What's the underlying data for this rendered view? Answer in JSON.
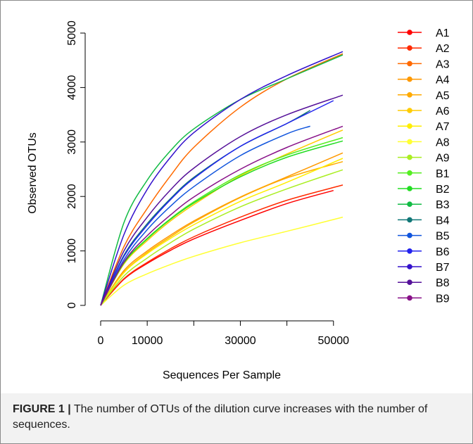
{
  "chart_data": {
    "type": "line",
    "xlabel": "Sequences Per Sample",
    "ylabel": "Observed OTUs",
    "xlim": [
      0,
      52000
    ],
    "ylim": [
      0,
      5000
    ],
    "xticks": [
      0,
      10000,
      30000,
      50000
    ],
    "xtick_labels": [
      "0",
      "10000",
      "30000",
      "50000"
    ],
    "yticks": [
      0,
      1000,
      2000,
      3000,
      4000,
      5000
    ],
    "ytick_labels": [
      "0",
      "1000",
      "2000",
      "3000",
      "4000",
      "5000"
    ],
    "legend_position": "right",
    "grid": false,
    "series": [
      {
        "name": "A1",
        "color": "#ff0000",
        "x": [
          0,
          5000,
          10000,
          15000,
          20000,
          30000,
          40000,
          50000
        ],
        "y": [
          0,
          480,
          770,
          1010,
          1220,
          1560,
          1870,
          2110
        ]
      },
      {
        "name": "A2",
        "color": "#ff2a00",
        "x": [
          0,
          5000,
          10000,
          15000,
          20000,
          30000,
          40000,
          52000
        ],
        "y": [
          0,
          490,
          790,
          1040,
          1260,
          1620,
          1930,
          2210
        ]
      },
      {
        "name": "A3",
        "color": "#ff6a00",
        "x": [
          0,
          5000,
          10000,
          15000,
          20000,
          30000,
          40000,
          52000
        ],
        "y": [
          0,
          1080,
          1780,
          2380,
          2900,
          3640,
          4160,
          4620
        ]
      },
      {
        "name": "A4",
        "color": "#ff9900",
        "x": [
          0,
          5000,
          10000,
          15000,
          20000,
          30000,
          40000,
          52000
        ],
        "y": [
          0,
          640,
          1000,
          1290,
          1550,
          1990,
          2360,
          2800
        ]
      },
      {
        "name": "A5",
        "color": "#ffaa00",
        "x": [
          0,
          5000,
          10000,
          15000,
          20000,
          30000,
          40000,
          52000
        ],
        "y": [
          0,
          610,
          970,
          1260,
          1530,
          1980,
          2340,
          2640
        ]
      },
      {
        "name": "A6",
        "color": "#ffcc00",
        "x": [
          0,
          5000,
          10000,
          15000,
          20000,
          30000,
          40000,
          52000
        ],
        "y": [
          0,
          760,
          1190,
          1550,
          1850,
          2380,
          2780,
          3220
        ]
      },
      {
        "name": "A7",
        "color": "#ffee00",
        "x": [
          0,
          5000,
          10000,
          15000,
          20000,
          30000,
          40000,
          52000
        ],
        "y": [
          0,
          600,
          950,
          1230,
          1480,
          1910,
          2260,
          2700
        ]
      },
      {
        "name": "A8",
        "color": "#ffff33",
        "x": [
          0,
          5000,
          10000,
          15000,
          20000,
          30000,
          40000,
          52000
        ],
        "y": [
          0,
          370,
          580,
          750,
          900,
          1150,
          1360,
          1620
        ]
      },
      {
        "name": "A9",
        "color": "#aaee22",
        "x": [
          0,
          5000,
          10000,
          15000,
          20000,
          30000,
          40000,
          52000
        ],
        "y": [
          0,
          540,
          870,
          1150,
          1400,
          1810,
          2140,
          2490
        ]
      },
      {
        "name": "B1",
        "color": "#55ee22",
        "x": [
          0,
          5000,
          10000,
          15000,
          20000,
          30000,
          40000,
          52000
        ],
        "y": [
          0,
          780,
          1230,
          1590,
          1900,
          2400,
          2760,
          3080
        ]
      },
      {
        "name": "B2",
        "color": "#22dd22",
        "x": [
          0,
          5000,
          10000,
          15000,
          20000,
          30000,
          40000,
          52000
        ],
        "y": [
          0,
          780,
          1220,
          1580,
          1880,
          2360,
          2720,
          3020
        ]
      },
      {
        "name": "B3",
        "color": "#11bb44",
        "x": [
          0,
          5000,
          10000,
          15000,
          20000,
          30000,
          40000,
          52000
        ],
        "y": [
          0,
          1520,
          2300,
          2840,
          3240,
          3780,
          4160,
          4600
        ]
      },
      {
        "name": "B4",
        "color": "#117777",
        "x": [
          0,
          5000,
          10000,
          15000,
          20000,
          30000,
          40000,
          45000
        ],
        "y": [
          0,
          920,
          1500,
          1960,
          2350,
          2920,
          3340,
          3580
        ]
      },
      {
        "name": "B5",
        "color": "#1155dd",
        "x": [
          0,
          5000,
          10000,
          15000,
          20000,
          30000,
          40000,
          45000
        ],
        "y": [
          0,
          840,
          1390,
          1820,
          2180,
          2750,
          3150,
          3290
        ]
      },
      {
        "name": "B6",
        "color": "#2222ee",
        "x": [
          0,
          5000,
          10000,
          15000,
          20000,
          30000,
          40000,
          50000
        ],
        "y": [
          0,
          900,
          1470,
          1940,
          2330,
          2920,
          3340,
          3760
        ]
      },
      {
        "name": "B7",
        "color": "#3311cc",
        "x": [
          0,
          5000,
          10000,
          15000,
          20000,
          30000,
          40000,
          52000
        ],
        "y": [
          0,
          1300,
          2130,
          2720,
          3170,
          3780,
          4220,
          4660
        ]
      },
      {
        "name": "B8",
        "color": "#551199",
        "x": [
          0,
          5000,
          10000,
          15000,
          20000,
          30000,
          40000,
          52000
        ],
        "y": [
          0,
          1000,
          1620,
          2120,
          2520,
          3100,
          3500,
          3860
        ]
      },
      {
        "name": "B9",
        "color": "#881188",
        "x": [
          0,
          5000,
          10000,
          15000,
          20000,
          30000,
          40000,
          52000
        ],
        "y": [
          0,
          800,
          1280,
          1660,
          1990,
          2500,
          2900,
          3290
        ]
      }
    ]
  },
  "caption": {
    "label": "FIGURE 1 |",
    "text": " The number of OTUs of the dilution curve increases with the number of sequences."
  }
}
